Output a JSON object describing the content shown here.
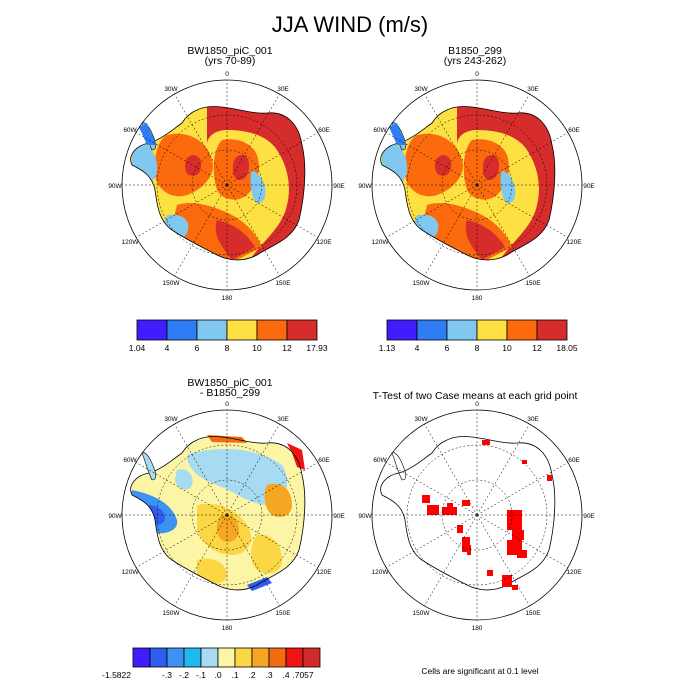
{
  "title": "JJA WIND (m/s)",
  "panels": [
    {
      "title": "BW1850_piC_001",
      "subtitle": "(yrs 70-89)"
    },
    {
      "title": "B1850_299",
      "subtitle": "(yrs 243-262)"
    },
    {
      "title": "BW1850_piC_001",
      "subtitle": "- B1850_299"
    },
    {
      "title": "T-Test of two Case means at each grid point",
      "subtitle": ""
    }
  ],
  "lon_labels": [
    "0",
    "30E",
    "60E",
    "90E",
    "120E",
    "150E",
    "180",
    "150W",
    "120W",
    "90W",
    "60W",
    "30W"
  ],
  "colorbars": [
    {
      "colors": [
        "#3f1dfd",
        "#2f7df4",
        "#80c8f0",
        "#fde142",
        "#fb6b0d",
        "#d62c2c"
      ],
      "labels": [
        "1.04",
        "4",
        "6",
        "8",
        "10",
        "12",
        "17.93"
      ]
    },
    {
      "colors": [
        "#3f1dfd",
        "#2f7df4",
        "#80c8f0",
        "#fde142",
        "#fb6b0d",
        "#d62c2c"
      ],
      "labels": [
        "1.13",
        "4",
        "6",
        "8",
        "10",
        "12",
        "18.05"
      ]
    },
    {
      "colors": [
        "#3f1dfd",
        "#2e5ef0",
        "#3d93f2",
        "#1fb8ef",
        "#a6dbf1",
        "#fcf5a5",
        "#fbd645",
        "#f5a623",
        "#f36b10",
        "#ef1414",
        "#cf2b2b"
      ],
      "labels": [
        "-1.5822",
        "-.3",
        "-.2",
        "-.1",
        ".0",
        ".1",
        ".2",
        ".3",
        ".4",
        ".7057"
      ]
    }
  ],
  "note": "Cells are significant at 0.1 level",
  "colors": {
    "red": "#d62c2c",
    "orange": "#fb6b0d",
    "yellow": "#fde142",
    "lightblue": "#80c8f0",
    "blue": "#2f7df4",
    "sig": "#ff0000"
  }
}
